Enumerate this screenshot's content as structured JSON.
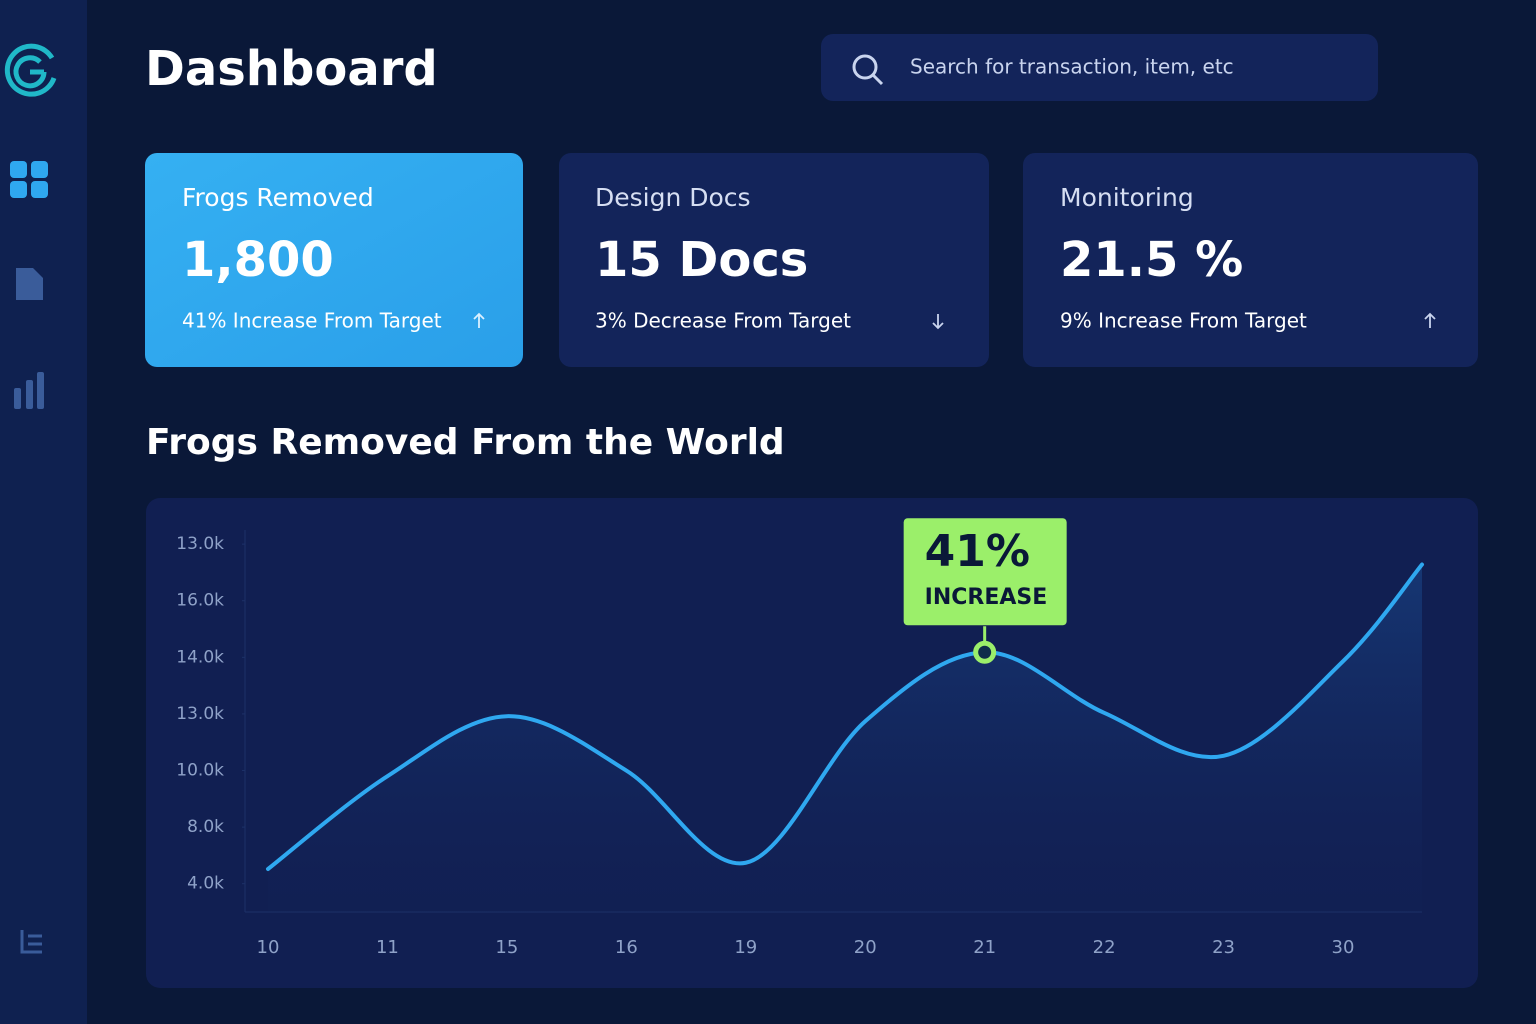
{
  "header": {
    "title": "Dashboard",
    "search_placeholder": "Search for transaction, item, etc"
  },
  "cards": [
    {
      "label": "Frogs Removed",
      "value": "1,800",
      "change": "41% Increase From Target"
    },
    {
      "label": "Design Docs",
      "value": "15 Docs",
      "change": "3% Decrease From Target"
    },
    {
      "label": "Monitoring",
      "value": "21.5 %",
      "change": "9% Increase From Target"
    }
  ],
  "chart_data": {
    "type": "line",
    "title": "Frogs Removed From the World",
    "categories": [
      "10",
      "11",
      "15",
      "16",
      "19",
      "20",
      "21",
      "22",
      "23",
      "30",
      null
    ],
    "series": [
      {
        "color": "#2fa8f0",
        "values": [
          0.26,
          1.9,
          2.96,
          2.0,
          0.37,
          2.87,
          4.09,
          3.02,
          2.26,
          3.93,
          5.64
        ]
      }
    ],
    "ylim": [
      -0.5,
      6.25
    ],
    "yticks": [
      {
        "value": 0,
        "label": "4.0k"
      },
      {
        "value": 1,
        "label": "8.0k"
      },
      {
        "value": 2,
        "label": "10.0k"
      },
      {
        "value": 3,
        "label": "13.0k"
      },
      {
        "value": 4,
        "label": "14.0k"
      },
      {
        "value": 5,
        "label": "16.0k"
      },
      {
        "value": 6,
        "label": "13.0k"
      }
    ],
    "annotation": {
      "text": "41%",
      "subtext": "INCREASE",
      "category": "21"
    }
  }
}
